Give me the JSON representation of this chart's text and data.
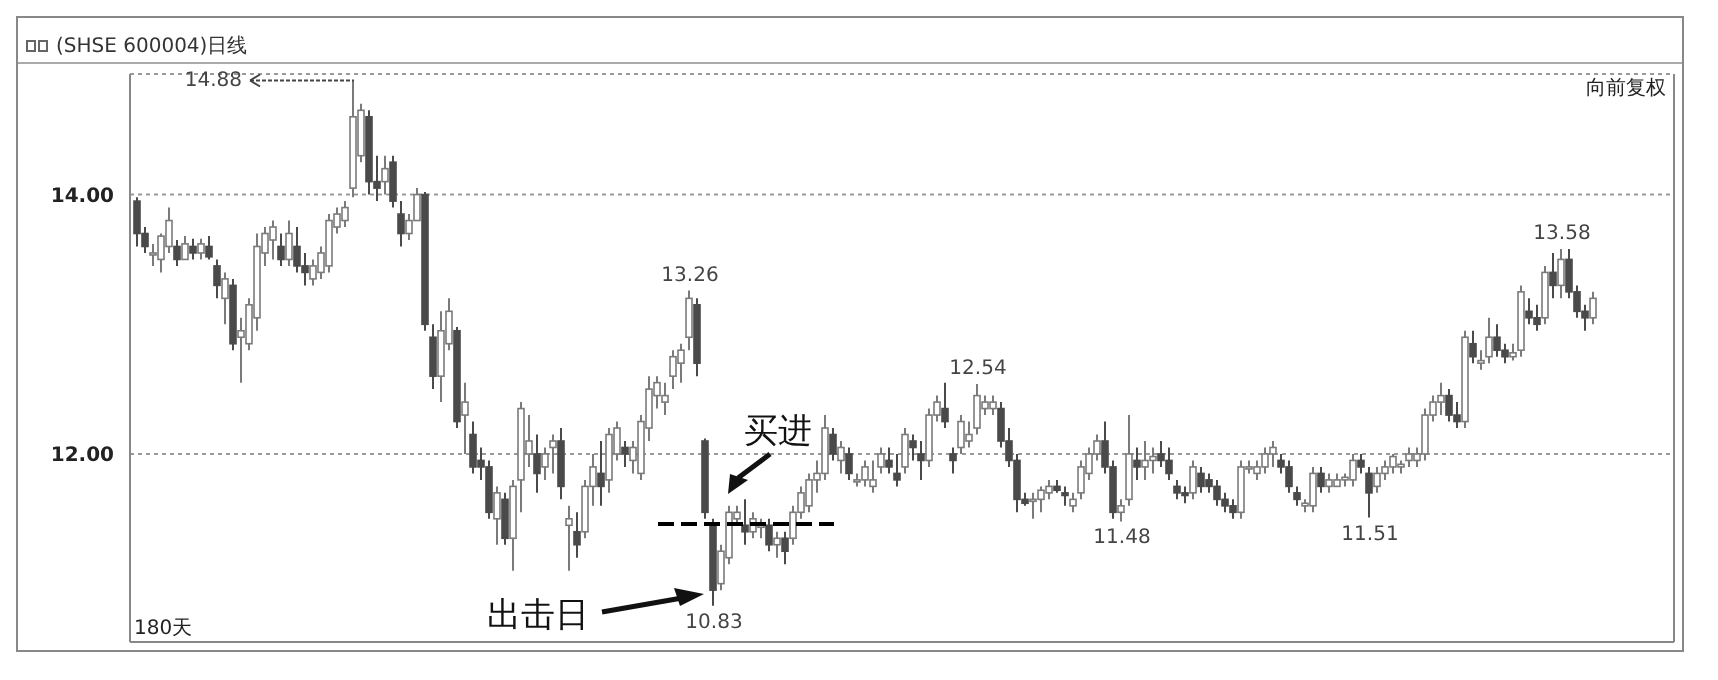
{
  "chart_data": {
    "type": "candlestick",
    "title": "(SHSE 600004)日线",
    "categories": [
      null,
      null,
      null,
      null,
      null,
      null,
      null,
      null,
      null,
      null,
      null,
      null,
      null,
      null,
      null,
      null,
      null,
      null,
      null,
      null,
      null,
      null,
      null,
      null,
      null,
      null,
      null,
      null,
      null,
      null,
      null,
      null,
      null,
      null,
      null,
      null,
      null,
      null,
      null,
      null,
      null,
      null,
      null,
      null,
      null,
      null,
      null,
      null,
      null,
      null,
      null,
      null,
      null,
      null,
      null,
      null,
      null,
      null,
      null,
      null,
      null,
      null,
      null,
      null,
      null,
      null,
      null,
      null,
      null,
      null,
      null,
      null,
      null,
      null,
      null,
      null,
      null,
      null,
      null,
      null,
      null,
      null,
      null,
      null,
      null,
      null,
      null,
      null,
      null,
      null,
      null,
      null,
      null,
      null,
      null,
      null,
      null,
      null,
      null,
      null,
      null,
      null,
      null,
      null,
      null,
      null,
      null,
      null,
      null,
      null,
      null,
      null,
      null,
      null,
      null,
      null,
      null,
      null,
      null,
      null,
      null,
      null,
      null,
      null,
      null,
      null,
      null,
      null,
      null,
      null,
      null,
      null,
      null,
      null,
      null,
      null,
      null,
      null,
      null,
      null,
      null,
      null,
      null,
      null,
      null,
      null,
      null,
      null,
      null,
      null,
      null,
      null,
      null,
      null,
      null,
      null,
      null,
      null,
      null,
      null,
      null,
      null,
      null,
      null,
      null,
      null,
      null,
      null,
      null,
      null,
      null,
      null,
      null,
      null,
      null,
      null,
      null,
      null,
      null,
      null,
      null,
      null,
      null
    ],
    "ohlc": [
      [
        13.95,
        13.98,
        13.6,
        13.7
      ],
      [
        13.7,
        13.75,
        13.55,
        13.6
      ],
      [
        13.55,
        13.62,
        13.45,
        13.55
      ],
      [
        13.5,
        13.7,
        13.4,
        13.68
      ],
      [
        13.6,
        13.9,
        13.55,
        13.8
      ],
      [
        13.6,
        13.65,
        13.45,
        13.5
      ],
      [
        13.5,
        13.68,
        13.5,
        13.62
      ],
      [
        13.6,
        13.66,
        13.5,
        13.55
      ],
      [
        13.55,
        13.66,
        13.5,
        13.62
      ],
      [
        13.6,
        13.68,
        13.5,
        13.52
      ],
      [
        13.45,
        13.5,
        13.2,
        13.3
      ],
      [
        13.2,
        13.4,
        13.0,
        13.35
      ],
      [
        13.3,
        13.35,
        12.8,
        12.85
      ],
      [
        12.9,
        13.05,
        12.55,
        12.95
      ],
      [
        12.85,
        13.2,
        12.8,
        13.15
      ],
      [
        13.05,
        13.7,
        12.95,
        13.6
      ],
      [
        13.55,
        13.75,
        13.45,
        13.7
      ],
      [
        13.65,
        13.8,
        13.5,
        13.75
      ],
      [
        13.6,
        13.7,
        13.45,
        13.5
      ],
      [
        13.5,
        13.8,
        13.45,
        13.7
      ],
      [
        13.6,
        13.75,
        13.4,
        13.45
      ],
      [
        13.45,
        13.55,
        13.3,
        13.4
      ],
      [
        13.35,
        13.5,
        13.3,
        13.45
      ],
      [
        13.4,
        13.6,
        13.35,
        13.55
      ],
      [
        13.45,
        13.85,
        13.4,
        13.8
      ],
      [
        13.75,
        13.9,
        13.7,
        13.85
      ],
      [
        13.8,
        13.95,
        13.75,
        13.9
      ],
      [
        14.05,
        14.88,
        13.98,
        14.6
      ],
      [
        14.3,
        14.7,
        14.25,
        14.65
      ],
      [
        14.6,
        14.65,
        14.0,
        14.1
      ],
      [
        14.1,
        14.3,
        13.95,
        14.05
      ],
      [
        14.1,
        14.3,
        14.0,
        14.2
      ],
      [
        14.25,
        14.3,
        13.9,
        13.95
      ],
      [
        13.85,
        13.95,
        13.6,
        13.7
      ],
      [
        13.7,
        13.85,
        13.65,
        13.8
      ],
      [
        13.8,
        14.05,
        13.8,
        14.0
      ],
      [
        14.0,
        14.02,
        12.95,
        13.0
      ],
      [
        12.9,
        13.0,
        12.5,
        12.6
      ],
      [
        12.6,
        13.1,
        12.4,
        12.95
      ],
      [
        12.85,
        13.2,
        12.8,
        13.1
      ],
      [
        12.95,
        12.98,
        12.2,
        12.25
      ],
      [
        12.3,
        12.55,
        12.0,
        12.4
      ],
      [
        12.15,
        12.25,
        11.85,
        11.9
      ],
      [
        11.95,
        12.05,
        11.8,
        11.9
      ],
      [
        11.9,
        11.95,
        11.5,
        11.55
      ],
      [
        11.5,
        11.75,
        11.3,
        11.7
      ],
      [
        11.65,
        11.7,
        11.3,
        11.35
      ],
      [
        11.35,
        11.8,
        11.1,
        11.75
      ],
      [
        11.8,
        12.4,
        11.55,
        12.35
      ],
      [
        12.0,
        12.3,
        11.9,
        12.1
      ],
      [
        12.0,
        12.15,
        11.7,
        11.85
      ],
      [
        11.9,
        12.05,
        11.8,
        12.0
      ],
      [
        12.05,
        12.15,
        11.85,
        12.1
      ],
      [
        12.1,
        12.2,
        11.65,
        11.75
      ],
      [
        11.45,
        11.6,
        11.1,
        11.5
      ],
      [
        11.4,
        11.55,
        11.2,
        11.3
      ],
      [
        11.4,
        11.8,
        11.35,
        11.75
      ],
      [
        11.75,
        12.0,
        11.6,
        11.9
      ],
      [
        11.85,
        12.1,
        11.6,
        11.75
      ],
      [
        11.8,
        12.2,
        11.7,
        12.15
      ],
      [
        12.0,
        12.25,
        11.95,
        12.2
      ],
      [
        12.05,
        12.1,
        11.9,
        12.0
      ],
      [
        11.95,
        12.1,
        11.85,
        12.05
      ],
      [
        11.85,
        12.3,
        11.8,
        12.25
      ],
      [
        12.2,
        12.6,
        12.1,
        12.5
      ],
      [
        12.45,
        12.6,
        12.35,
        12.55
      ],
      [
        12.4,
        12.55,
        12.3,
        12.45
      ],
      [
        12.6,
        12.8,
        12.5,
        12.75
      ],
      [
        12.7,
        12.85,
        12.55,
        12.8
      ],
      [
        12.9,
        13.26,
        12.8,
        13.2
      ],
      [
        13.15,
        13.2,
        12.6,
        12.7
      ],
      [
        12.1,
        12.12,
        11.5,
        11.55
      ],
      [
        11.45,
        11.5,
        10.83,
        10.95
      ],
      [
        11.0,
        11.3,
        10.95,
        11.25
      ],
      [
        11.2,
        11.6,
        11.15,
        11.55
      ],
      [
        11.5,
        11.6,
        11.45,
        11.55
      ],
      [
        11.45,
        11.65,
        11.3,
        11.4
      ],
      [
        11.4,
        11.55,
        11.35,
        11.5
      ],
      [
        11.45,
        11.5,
        11.35,
        11.45
      ],
      [
        11.45,
        11.5,
        11.25,
        11.3
      ],
      [
        11.3,
        11.4,
        11.2,
        11.35
      ],
      [
        11.35,
        11.4,
        11.15,
        11.25
      ],
      [
        11.35,
        11.6,
        11.3,
        11.55
      ],
      [
        11.55,
        11.75,
        11.5,
        11.7
      ],
      [
        11.6,
        11.85,
        11.55,
        11.8
      ],
      [
        11.8,
        11.95,
        11.7,
        11.85
      ],
      [
        11.85,
        12.3,
        11.8,
        12.2
      ],
      [
        12.15,
        12.2,
        11.95,
        12.0
      ],
      [
        11.95,
        12.1,
        11.85,
        12.05
      ],
      [
        12.0,
        12.05,
        11.8,
        11.85
      ],
      [
        11.8,
        11.85,
        11.75,
        11.8
      ],
      [
        11.8,
        11.95,
        11.75,
        11.9
      ],
      [
        11.75,
        11.95,
        11.7,
        11.8
      ],
      [
        11.9,
        12.05,
        11.85,
        12.0
      ],
      [
        11.95,
        12.05,
        11.85,
        11.9
      ],
      [
        11.85,
        12.0,
        11.75,
        11.8
      ],
      [
        11.9,
        12.2,
        11.85,
        12.15
      ],
      [
        12.1,
        12.15,
        11.95,
        12.05
      ],
      [
        12.0,
        12.1,
        11.8,
        11.95
      ],
      [
        11.95,
        12.35,
        11.9,
        12.3
      ],
      [
        12.3,
        12.45,
        12.25,
        12.4
      ],
      [
        12.35,
        12.55,
        12.2,
        12.25
      ],
      [
        12.0,
        12.05,
        11.85,
        11.95
      ],
      [
        12.05,
        12.3,
        12.0,
        12.25
      ],
      [
        12.1,
        12.25,
        12.05,
        12.15
      ],
      [
        12.2,
        12.54,
        12.15,
        12.45
      ],
      [
        12.35,
        12.45,
        12.3,
        12.4
      ],
      [
        12.35,
        12.45,
        12.3,
        12.4
      ],
      [
        12.35,
        12.4,
        12.05,
        12.1
      ],
      [
        12.1,
        12.2,
        11.9,
        11.95
      ],
      [
        11.95,
        12.0,
        11.55,
        11.65
      ],
      [
        11.65,
        11.7,
        11.6,
        11.62
      ],
      [
        11.65,
        11.7,
        11.5,
        11.65
      ],
      [
        11.65,
        11.75,
        11.55,
        11.72
      ],
      [
        11.7,
        11.8,
        11.65,
        11.75
      ],
      [
        11.75,
        11.8,
        11.7,
        11.72
      ],
      [
        11.7,
        11.75,
        11.6,
        11.68
      ],
      [
        11.6,
        11.7,
        11.55,
        11.65
      ],
      [
        11.7,
        11.95,
        11.65,
        11.9
      ],
      [
        11.85,
        12.05,
        11.8,
        12.0
      ],
      [
        12.0,
        12.15,
        11.95,
        12.1
      ],
      [
        12.1,
        12.25,
        11.85,
        11.9
      ],
      [
        11.9,
        11.95,
        11.5,
        11.55
      ],
      [
        11.55,
        11.65,
        11.48,
        11.6
      ],
      [
        11.65,
        12.3,
        11.6,
        12.0
      ],
      [
        11.95,
        12.05,
        11.8,
        11.9
      ],
      [
        11.9,
        12.1,
        11.8,
        11.95
      ],
      [
        11.95,
        12.05,
        11.85,
        11.98
      ],
      [
        12.0,
        12.1,
        11.9,
        11.95
      ],
      [
        11.95,
        12.05,
        11.8,
        11.85
      ],
      [
        11.75,
        11.8,
        11.65,
        11.7
      ],
      [
        11.7,
        11.75,
        11.62,
        11.68
      ],
      [
        11.7,
        11.95,
        11.65,
        11.9
      ],
      [
        11.85,
        11.9,
        11.7,
        11.75
      ],
      [
        11.8,
        11.85,
        11.7,
        11.75
      ],
      [
        11.75,
        11.8,
        11.6,
        11.65
      ],
      [
        11.65,
        11.7,
        11.55,
        11.6
      ],
      [
        11.6,
        11.65,
        11.5,
        11.55
      ],
      [
        11.55,
        11.95,
        11.5,
        11.9
      ],
      [
        11.9,
        11.95,
        11.85,
        11.9
      ],
      [
        11.85,
        11.95,
        11.8,
        11.9
      ],
      [
        11.9,
        12.05,
        11.85,
        12.0
      ],
      [
        12.0,
        12.1,
        11.9,
        12.05
      ],
      [
        11.95,
        12.0,
        11.85,
        11.9
      ],
      [
        11.9,
        11.95,
        11.7,
        11.75
      ],
      [
        11.7,
        11.75,
        11.6,
        11.65
      ],
      [
        11.6,
        11.65,
        11.55,
        11.62
      ],
      [
        11.6,
        11.9,
        11.55,
        11.85
      ],
      [
        11.85,
        11.9,
        11.7,
        11.75
      ],
      [
        11.75,
        11.85,
        11.7,
        11.8
      ],
      [
        11.75,
        11.85,
        11.75,
        11.8
      ],
      [
        11.8,
        11.85,
        11.75,
        11.82
      ],
      [
        11.8,
        12.0,
        11.75,
        11.95
      ],
      [
        11.95,
        12.0,
        11.85,
        11.9
      ],
      [
        11.85,
        11.9,
        11.51,
        11.7
      ],
      [
        11.75,
        11.9,
        11.7,
        11.85
      ],
      [
        11.85,
        11.95,
        11.8,
        11.9
      ],
      [
        11.9,
        12.0,
        11.85,
        11.98
      ],
      [
        11.9,
        11.95,
        11.85,
        11.92
      ],
      [
        11.95,
        12.05,
        11.9,
        12.0
      ],
      [
        11.95,
        12.05,
        11.9,
        12.0
      ],
      [
        12.0,
        12.35,
        11.95,
        12.3
      ],
      [
        12.3,
        12.45,
        12.25,
        12.4
      ],
      [
        12.4,
        12.55,
        12.3,
        12.45
      ],
      [
        12.45,
        12.5,
        12.25,
        12.3
      ],
      [
        12.3,
        12.4,
        12.2,
        12.25
      ],
      [
        12.25,
        12.95,
        12.2,
        12.9
      ],
      [
        12.85,
        12.95,
        12.7,
        12.75
      ],
      [
        12.7,
        12.8,
        12.65,
        12.72
      ],
      [
        12.75,
        13.05,
        12.7,
        12.9
      ],
      [
        12.9,
        13.0,
        12.75,
        12.8
      ],
      [
        12.8,
        12.85,
        12.7,
        12.75
      ],
      [
        12.75,
        12.85,
        12.72,
        12.78
      ],
      [
        12.8,
        13.3,
        12.75,
        13.25
      ],
      [
        13.1,
        13.2,
        13.0,
        13.05
      ],
      [
        13.05,
        13.15,
        12.95,
        13.0
      ],
      [
        13.05,
        13.45,
        13.0,
        13.4
      ],
      [
        13.4,
        13.55,
        13.2,
        13.3
      ],
      [
        13.3,
        13.58,
        13.2,
        13.5
      ],
      [
        13.5,
        13.58,
        13.2,
        13.25
      ],
      [
        13.25,
        13.3,
        13.05,
        13.1
      ],
      [
        13.1,
        13.15,
        12.95,
        13.05
      ],
      [
        13.05,
        13.25,
        13.0,
        13.2
      ]
    ],
    "series": [
      {
        "type": "line",
        "color": "#000000",
        "line_style": "dashed",
        "values": [
          null,
          null,
          null,
          null,
          null,
          null,
          null,
          null,
          null,
          null,
          null,
          null,
          null,
          null,
          null,
          null,
          null,
          null,
          null,
          null,
          null,
          null,
          null,
          null,
          null,
          null,
          null,
          null,
          null,
          null,
          null,
          null,
          null,
          null,
          null,
          null,
          null,
          null,
          null,
          null,
          null,
          null,
          null,
          null,
          null,
          null,
          null,
          null,
          null,
          null,
          null,
          null,
          null,
          null,
          null,
          null,
          null,
          null,
          null,
          null,
          null,
          null,
          null,
          null,
          null,
          11.46,
          11.46,
          11.46,
          11.46,
          11.46,
          11.46,
          11.46,
          11.46,
          11.46,
          11.46,
          11.46,
          11.46,
          11.46,
          11.46,
          11.46,
          11.46,
          11.46,
          11.46,
          11.46,
          11.46,
          11.46,
          11.46,
          11.46,
          null,
          null,
          null,
          null,
          null,
          null,
          null,
          null,
          null,
          null,
          null,
          null,
          null,
          null,
          null,
          null,
          null,
          null,
          null,
          null,
          null,
          null,
          null,
          null,
          null,
          null,
          null,
          null,
          null,
          null,
          null,
          null,
          null,
          null,
          null,
          null,
          null,
          null,
          null,
          null,
          null,
          null,
          null,
          null,
          null,
          null,
          null,
          null,
          null,
          null,
          null,
          null,
          null,
          null,
          null,
          null,
          null,
          null,
          null,
          null,
          null,
          null,
          null,
          null,
          null,
          null,
          null,
          null,
          null,
          null,
          null,
          null,
          null,
          null,
          null,
          null,
          null,
          null,
          null,
          null,
          null,
          null,
          null,
          null,
          null,
          null,
          null,
          null,
          null,
          null,
          null,
          null,
          null,
          null,
          null
        ]
      }
    ],
    "ylim": [
      10.55,
      14.93
    ],
    "yticks": [
      {
        "value": 12,
        "label": "12.00"
      },
      {
        "value": 14,
        "label": "14.00"
      }
    ],
    "grid": "y",
    "tick_labels": "y",
    "annotations": [
      "14.88",
      {
        "text": "13.26",
        "y": 13.26
      },
      {
        "text": "12.54",
        "y": 12.54
      },
      {
        "text": "11.48",
        "y": 11.48
      },
      {
        "text": "11.51",
        "y": 11.51
      },
      {
        "text": "13.58",
        "y": 13.58
      },
      {
        "text": "10.83",
        "y": 10.83
      },
      "买进",
      "出击日",
      "180天",
      "向前复权"
    ]
  }
}
